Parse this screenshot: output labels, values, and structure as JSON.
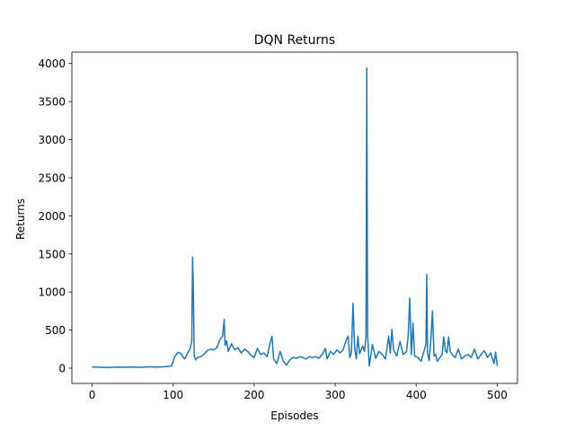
{
  "chart_data": {
    "type": "line",
    "title": "DQN Returns",
    "xlabel": "Episodes",
    "ylabel": "Returns",
    "xlim": [
      -25,
      525
    ],
    "ylim": [
      -200,
      4150
    ],
    "grid": false,
    "legend": "none",
    "x_ticks": [
      0,
      100,
      200,
      300,
      400,
      500
    ],
    "y_ticks": [
      0,
      500,
      1000,
      1500,
      2000,
      2500,
      3000,
      3500,
      4000
    ],
    "colors": {
      "line": "#1f77b4"
    },
    "series": [
      {
        "x": [
          0,
          10,
          20,
          30,
          40,
          50,
          60,
          70,
          80,
          90,
          98,
          102,
          106,
          110,
          114,
          118,
          121,
          123,
          124,
          125,
          126,
          128,
          130,
          134,
          138,
          142,
          146,
          150,
          154,
          158,
          161,
          163,
          164,
          166,
          168,
          172,
          176,
          180,
          184,
          188,
          192,
          196,
          200,
          204,
          208,
          212,
          216,
          220,
          222,
          224,
          228,
          232,
          236,
          240,
          244,
          248,
          252,
          256,
          260,
          264,
          268,
          272,
          276,
          280,
          284,
          288,
          290,
          294,
          298,
          302,
          306,
          310,
          314,
          316,
          318,
          320,
          322,
          324,
          326,
          328,
          330,
          334,
          336,
          338,
          339,
          340,
          342,
          346,
          350,
          354,
          358,
          362,
          366,
          368,
          370,
          372,
          376,
          380,
          384,
          388,
          390,
          392,
          394,
          396,
          398,
          402,
          406,
          410,
          412,
          413,
          414,
          416,
          418,
          420,
          422,
          424,
          426,
          428,
          432,
          434,
          436,
          438,
          440,
          442,
          444,
          448,
          452,
          456,
          460,
          464,
          468,
          472,
          476,
          480,
          484,
          488,
          492,
          496,
          498,
          500
        ],
        "y": [
          15,
          12,
          10,
          14,
          12,
          15,
          11,
          18,
          14,
          20,
          30,
          150,
          210,
          190,
          120,
          200,
          260,
          350,
          1460,
          1000,
          160,
          110,
          140,
          150,
          180,
          230,
          250,
          240,
          270,
          380,
          420,
          640,
          300,
          360,
          220,
          320,
          240,
          270,
          200,
          250,
          220,
          170,
          140,
          260,
          180,
          200,
          150,
          350,
          420,
          120,
          60,
          220,
          90,
          40,
          110,
          140,
          130,
          150,
          140,
          120,
          150,
          140,
          150,
          130,
          180,
          260,
          120,
          220,
          180,
          240,
          200,
          250,
          380,
          420,
          140,
          200,
          850,
          270,
          120,
          420,
          190,
          290,
          220,
          400,
          3940,
          450,
          30,
          310,
          130,
          220,
          180,
          120,
          420,
          200,
          510,
          240,
          160,
          350,
          180,
          220,
          410,
          920,
          180,
          590,
          160,
          140,
          90,
          240,
          310,
          1230,
          200,
          100,
          360,
          750,
          160,
          180,
          90,
          120,
          180,
          410,
          230,
          200,
          410,
          220,
          180,
          140,
          250,
          120,
          160,
          180,
          140,
          250,
          120,
          180,
          230,
          140,
          200,
          60,
          210,
          30
        ]
      }
    ]
  }
}
